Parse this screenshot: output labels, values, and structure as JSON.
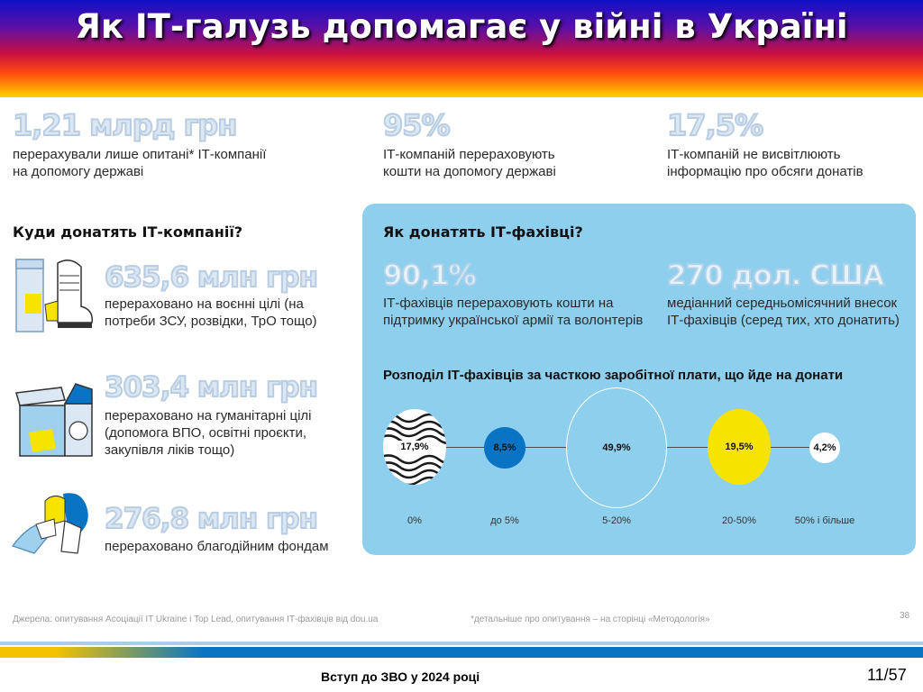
{
  "header": {
    "title": "Як ІТ-галузь допомагає у війні в Україні"
  },
  "top_stats": [
    {
      "value": "1,21 млрд грн",
      "text": "перерахували лише опитані* ІТ-компанії на допомогу державі"
    },
    {
      "value": "95%",
      "text": "ІТ-компаній перераховують кошти на допомогу державі"
    },
    {
      "value": "17,5%",
      "text": "ІТ-компаній не висвітлюють інформацію про обсяги донатів"
    }
  ],
  "companies": {
    "heading": "Куди донатять ІТ-компанії?",
    "items": [
      {
        "value": "635,6 млн грн",
        "text": "перераховано на воєнні цілі (на потреби ЗСУ, розвідки, ТрО тощо)",
        "icon": "military-boot-icon"
      },
      {
        "value": "303,4 млн грн",
        "text": "перераховано на гуманітарні цілі (допомога ВПО, освітні проєкти, закупівля ліків тощо)",
        "icon": "aid-box-icon"
      },
      {
        "value": "276,8 млн грн",
        "text": "перераховано благодійним фондам",
        "icon": "puzzle-hands-icon"
      }
    ]
  },
  "specialists": {
    "heading": "Як донатять ІТ-фахівці?",
    "stat1": {
      "value": "90,1%",
      "text": "ІТ-фахівців перераховують кошти на підтримку української армії та волонтерів"
    },
    "stat2": {
      "value": "270 дол. США",
      "text": "медіанний середньомісячний внесок ІТ-фахівців (серед тих, хто донатить)"
    },
    "distribution": {
      "title": "Розподіл ІТ-фахівців за часткою заробітної плати, що йде на донати",
      "bubbles": [
        {
          "value": "17,9%",
          "label": "0%",
          "style": "wavy"
        },
        {
          "value": "8,5%",
          "label": "до 5%",
          "style": "blue"
        },
        {
          "value": "49,9%",
          "label": "5-20%",
          "style": "outline"
        },
        {
          "value": "19,5%",
          "label": "20-50%",
          "style": "yellow"
        },
        {
          "value": "4,2%",
          "label": "50% і більше",
          "style": "white"
        }
      ]
    }
  },
  "colors": {
    "panel": "#8dcfed",
    "accent_blue": "#0a74c4",
    "accent_yellow": "#f7e300"
  },
  "sources": "Джерела: опитування Асоціації IT Ukraine і Top Lead, опитування ІТ-фахівців від dou.ua",
  "footnote": "*детальніше про опитування – на сторінці «Методологія»",
  "inner_page": "38",
  "footer": {
    "label": "Вступ до ЗВО у 2024 році",
    "page": "11/57"
  }
}
